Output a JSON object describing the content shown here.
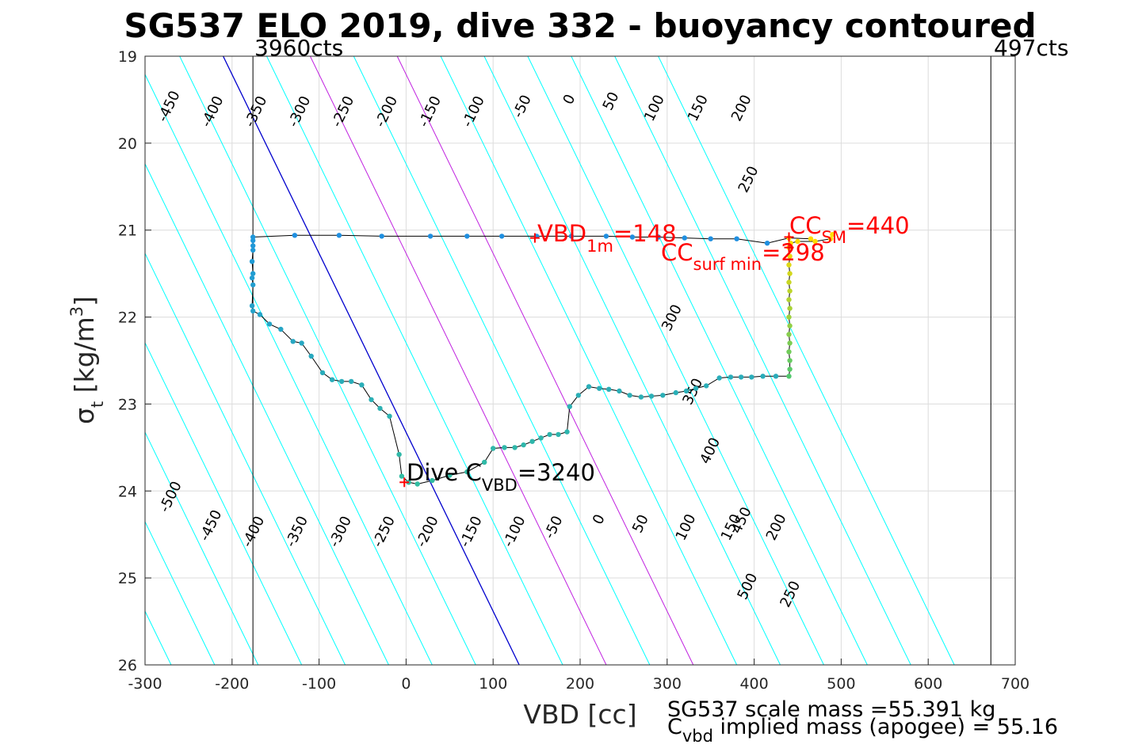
{
  "title": "SG537 ELO 2019, dive 332 - buoyancy contoured",
  "top_left_label": "3960cts",
  "top_right_label": "497cts",
  "footer": {
    "line1": "SG537 scale mass =55.391 kg",
    "line2_main": "C",
    "line2_sub": "vbd",
    "line2_rest": " implied mass (apogee) = 55.16"
  },
  "annotations": {
    "vbd1m": {
      "main": "VBD",
      "sub": "1m",
      "rest": "=148",
      "color": "#ff0000"
    },
    "ccsm": {
      "main": "CC",
      "sub": "SM",
      "rest": "=440",
      "color": "#ff0000"
    },
    "ccsurf": {
      "main": "CC",
      "sub": "surf min",
      "rest": "=298",
      "color": "#ff0000"
    },
    "divec": {
      "main": "Dive C",
      "sub": "VBD",
      "rest": "=3240",
      "color": "#000000"
    }
  },
  "colors": {
    "contour": "#00ffff",
    "zero_contour": "#0000cd",
    "highlight_contour": "#c020e0",
    "track": "#000000",
    "marker": "#ff0000",
    "grid": "#dcdcdc"
  },
  "chart_data": {
    "type": "scatter",
    "xlabel": "VBD [cc]",
    "ylabel": "σt [kg/m3]",
    "ylabel_parts": {
      "sym": "σ",
      "sub": "t",
      "mid": " [kg/m",
      "sup": "3",
      "end": "]"
    },
    "xlim": [
      -300,
      700
    ],
    "ylim": [
      19,
      26
    ],
    "y_reversed": true,
    "grid": true,
    "x_ticks": [
      -300,
      -200,
      -100,
      0,
      100,
      200,
      300,
      400,
      500,
      600,
      700
    ],
    "x_tick_labels": [
      "-300",
      "-200",
      "-100",
      "0",
      "100",
      "200",
      "300",
      "400",
      "500",
      "600",
      "700"
    ],
    "y_ticks": [
      19,
      20,
      21,
      22,
      23,
      24,
      25,
      26
    ],
    "y_tick_labels": [
      "19",
      "20",
      "21",
      "22",
      "23",
      "24",
      "25",
      "26"
    ],
    "vertical_limits": [
      -176,
      672
    ],
    "contours": {
      "description": "buoyancy isolines",
      "slope_x_per_sigma": 48.6,
      "zero_x_at_sigma_26": 130,
      "spacing_x": 50,
      "levels": [
        -500,
        -450,
        -400,
        -350,
        -300,
        -250,
        -200,
        -150,
        -100,
        -50,
        0,
        50,
        100,
        150,
        200,
        250,
        300,
        350,
        400,
        450,
        500
      ],
      "highlight_levels": [
        100,
        200
      ],
      "upper_labels": [
        {
          "text": "-450",
          "x": -272,
          "y": 19.58
        },
        {
          "text": "-400",
          "x": -222,
          "y": 19.64
        },
        {
          "text": "-350",
          "x": -172,
          "y": 19.64
        },
        {
          "text": "-300",
          "x": -122,
          "y": 19.64
        },
        {
          "text": "-250",
          "x": -72,
          "y": 19.64
        },
        {
          "text": "-200",
          "x": -22,
          "y": 19.64
        },
        {
          "text": "-150",
          "x": 28,
          "y": 19.64
        },
        {
          "text": "-100",
          "x": 78,
          "y": 19.64
        },
        {
          "text": "-50",
          "x": 134,
          "y": 19.58
        },
        {
          "text": "0",
          "x": 188,
          "y": 19.5
        },
        {
          "text": "50",
          "x": 236,
          "y": 19.52
        },
        {
          "text": "100",
          "x": 286,
          "y": 19.6
        },
        {
          "text": "150",
          "x": 336,
          "y": 19.6
        },
        {
          "text": "200",
          "x": 386,
          "y": 19.6
        },
        {
          "text": "250",
          "x": 394,
          "y": 20.42
        },
        {
          "text": "300",
          "x": 306,
          "y": 22.01
        },
        {
          "text": "350",
          "x": 330,
          "y": 22.86
        },
        {
          "text": "400",
          "x": 350,
          "y": 23.54
        },
        {
          "text": "450",
          "x": 386,
          "y": 24.34
        },
        {
          "text": "500",
          "x": 393,
          "y": 25.1
        }
      ],
      "lower_labels": [
        {
          "text": "-500",
          "x": -270,
          "y": 24.07
        },
        {
          "text": "-450",
          "x": -224,
          "y": 24.4
        },
        {
          "text": "-400",
          "x": -175,
          "y": 24.47
        },
        {
          "text": "-350",
          "x": -125,
          "y": 24.47
        },
        {
          "text": "-300",
          "x": -75,
          "y": 24.47
        },
        {
          "text": "-250",
          "x": -25,
          "y": 24.47
        },
        {
          "text": "-200",
          "x": 25,
          "y": 24.47
        },
        {
          "text": "-150",
          "x": 75,
          "y": 24.47
        },
        {
          "text": "-100",
          "x": 125,
          "y": 24.47
        },
        {
          "text": "-50",
          "x": 170,
          "y": 24.42
        },
        {
          "text": "0",
          "x": 222,
          "y": 24.33
        },
        {
          "text": "50",
          "x": 270,
          "y": 24.38
        },
        {
          "text": "100",
          "x": 322,
          "y": 24.42
        },
        {
          "text": "150",
          "x": 374,
          "y": 24.42
        },
        {
          "text": "200",
          "x": 426,
          "y": 24.42
        },
        {
          "text": "250",
          "x": 442,
          "y": 25.19
        }
      ]
    },
    "track": [
      [
        465,
        21.1
      ],
      [
        440,
        21.09
      ],
      [
        415,
        21.15
      ],
      [
        380,
        21.1
      ],
      [
        350,
        21.1
      ],
      [
        320,
        21.09
      ],
      [
        290,
        21.08
      ],
      [
        260,
        21.08
      ],
      [
        230,
        21.07
      ],
      [
        190,
        21.07
      ],
      [
        150,
        21.07
      ],
      [
        110,
        21.07
      ],
      [
        70,
        21.07
      ],
      [
        28,
        21.07
      ],
      [
        -28,
        21.07
      ],
      [
        -77,
        21.06
      ],
      [
        -128,
        21.06
      ],
      [
        -176,
        21.08
      ],
      [
        -176,
        21.12
      ],
      [
        -176,
        21.18
      ],
      [
        -176,
        21.23
      ],
      [
        -177,
        21.36
      ],
      [
        -176,
        21.5
      ],
      [
        -177,
        21.55
      ],
      [
        -176,
        21.63
      ],
      [
        -177,
        21.87
      ],
      [
        -176,
        21.93
      ],
      [
        -168,
        21.97
      ],
      [
        -157,
        22.08
      ],
      [
        -144,
        22.14
      ],
      [
        -130,
        22.28
      ],
      [
        -120,
        22.3
      ],
      [
        -109,
        22.45
      ],
      [
        -96,
        22.64
      ],
      [
        -85,
        22.72
      ],
      [
        -74,
        22.74
      ],
      [
        -63,
        22.74
      ],
      [
        -51,
        22.78
      ],
      [
        -40,
        22.95
      ],
      [
        -30,
        23.05
      ],
      [
        -19,
        23.14
      ],
      [
        -8,
        23.58
      ],
      [
        -5,
        23.83
      ],
      [
        3,
        23.9
      ],
      [
        13,
        23.92
      ],
      [
        30,
        23.88
      ],
      [
        50,
        23.82
      ],
      [
        70,
        23.78
      ],
      [
        90,
        23.67
      ],
      [
        100,
        23.51
      ],
      [
        113,
        23.5
      ],
      [
        125,
        23.5
      ],
      [
        135,
        23.47
      ],
      [
        145,
        23.43
      ],
      [
        155,
        23.39
      ],
      [
        165,
        23.35
      ],
      [
        175,
        23.35
      ],
      [
        185,
        23.32
      ],
      [
        188,
        23.03
      ],
      [
        198,
        22.9
      ],
      [
        210,
        22.8
      ],
      [
        222,
        22.82
      ],
      [
        233,
        22.83
      ],
      [
        245,
        22.85
      ],
      [
        257,
        22.9
      ],
      [
        270,
        22.92
      ],
      [
        282,
        22.91
      ],
      [
        295,
        22.9
      ],
      [
        310,
        22.87
      ],
      [
        322,
        22.85
      ],
      [
        333,
        22.82
      ],
      [
        345,
        22.79
      ],
      [
        360,
        22.7
      ],
      [
        373,
        22.69
      ],
      [
        385,
        22.69
      ],
      [
        397,
        22.69
      ],
      [
        410,
        22.68
      ],
      [
        425,
        22.68
      ],
      [
        440,
        22.68
      ],
      [
        441,
        22.6
      ],
      [
        441,
        22.5
      ],
      [
        440,
        22.4
      ],
      [
        441,
        22.3
      ],
      [
        440,
        22.2
      ],
      [
        441,
        22.1
      ],
      [
        440,
        22.0
      ],
      [
        441,
        21.9
      ],
      [
        440,
        21.8
      ],
      [
        441,
        21.7
      ],
      [
        440,
        21.6
      ],
      [
        441,
        21.5
      ],
      [
        440,
        21.4
      ],
      [
        441,
        21.3
      ],
      [
        440,
        21.2
      ],
      [
        442,
        21.15
      ],
      [
        450,
        21.13
      ],
      [
        470,
        21.13
      ],
      [
        488,
        21.1
      ],
      [
        490,
        21.05
      ]
    ],
    "markers": [
      {
        "label": "VBD_1m",
        "x": 148,
        "y": 21.09
      },
      {
        "label": "CC_SM",
        "x": 440,
        "y": 21.08
      },
      {
        "label": "CC_surf_min",
        "x": 440,
        "y": 21.2
      },
      {
        "label": "Dive C_VBD",
        "x": -2,
        "y": 23.9
      }
    ]
  }
}
